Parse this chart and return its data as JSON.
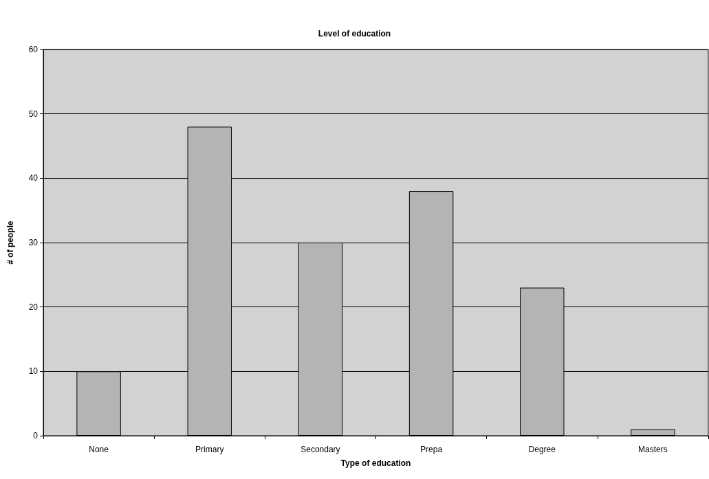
{
  "chart_data": {
    "type": "bar",
    "title": "Level of education",
    "xlabel": "Type of education",
    "ylabel": "# of people",
    "categories": [
      "None",
      "Primary",
      "Secondary",
      "Prepa",
      "Degree",
      "Masters"
    ],
    "values": [
      10,
      48,
      30,
      38,
      23,
      1
    ],
    "color": "#b4b4b4",
    "ylim": [
      0,
      60
    ],
    "yticks": [
      0,
      10,
      20,
      30,
      40,
      50,
      60
    ],
    "grid": "y"
  }
}
